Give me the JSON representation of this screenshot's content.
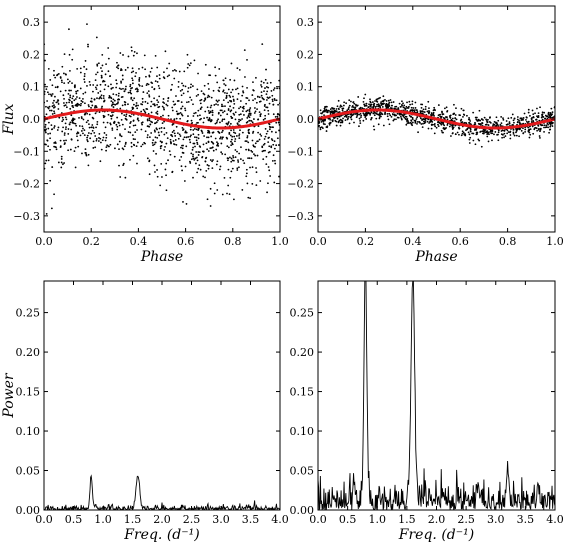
{
  "chart_data": [
    {
      "type": "scatter",
      "panel": "top-left",
      "xlabel": "Phase",
      "ylabel": "Flux",
      "xlim": [
        0.0,
        1.0
      ],
      "ylim": [
        -0.35,
        0.35
      ],
      "xticks": [
        0.0,
        0.2,
        0.4,
        0.6,
        0.8,
        1.0
      ],
      "xtick_labels": [
        "0.0",
        "0.2",
        "0.4",
        "0.6",
        "0.8",
        "1.0"
      ],
      "yticks": [
        -0.3,
        -0.2,
        -0.1,
        0.0,
        0.1,
        0.2,
        0.3
      ],
      "ytick_labels": [
        "−0.3",
        "−0.2",
        "−0.1",
        "0.0",
        "0.1",
        "0.2",
        "0.3"
      ],
      "scatter_spread": 0.085,
      "scatter_count": 1500,
      "model": {
        "type": "sinusoid",
        "amplitude": 0.028,
        "phase_of_maximum": 0.25,
        "color": "#e31a1c"
      },
      "point_color": "#000000"
    },
    {
      "type": "scatter",
      "panel": "top-right",
      "xlabel": "Phase",
      "ylabel": "",
      "xlim": [
        0.0,
        1.0
      ],
      "ylim": [
        -0.35,
        0.35
      ],
      "xticks": [
        0.0,
        0.2,
        0.4,
        0.6,
        0.8,
        1.0
      ],
      "xtick_labels": [
        "0.0",
        "0.2",
        "0.4",
        "0.6",
        "0.8",
        "1.0"
      ],
      "yticks": [
        -0.3,
        -0.2,
        -0.1,
        0.0,
        0.1,
        0.2,
        0.3
      ],
      "ytick_labels": [
        "−0.3",
        "−0.2",
        "−0.1",
        "0.0",
        "0.1",
        "0.2",
        "0.3"
      ],
      "scatter_spread": 0.018,
      "scatter_count": 1300,
      "model": {
        "type": "sinusoid",
        "amplitude": 0.028,
        "phase_of_maximum": 0.25,
        "color": "#e31a1c"
      },
      "point_color": "#000000"
    },
    {
      "type": "line",
      "panel": "bottom-left",
      "xlabel": "Freq. (d⁻¹)",
      "ylabel": "Power",
      "xlim": [
        0.0,
        4.0
      ],
      "ylim": [
        0.0,
        0.29
      ],
      "xticks": [
        0.0,
        0.5,
        1.0,
        1.5,
        2.0,
        2.5,
        3.0,
        3.5,
        4.0
      ],
      "xtick_labels": [
        "0.0",
        "0.5",
        "1.0",
        "1.5",
        "2.0",
        "2.5",
        "3.0",
        "3.5",
        "4.0"
      ],
      "yticks": [
        0.0,
        0.05,
        0.1,
        0.15,
        0.2,
        0.25
      ],
      "ytick_labels": [
        "0.00",
        "0.05",
        "0.10",
        "0.15",
        "0.20",
        "0.25"
      ],
      "peaks": [
        {
          "x": 0.8,
          "y": 0.041,
          "width": 0.02
        },
        {
          "x": 1.59,
          "y": 0.042,
          "width": 0.03
        }
      ],
      "noise_level": 0.003,
      "line_color": "#000000"
    },
    {
      "type": "line",
      "panel": "bottom-right",
      "xlabel": "Freq. (d⁻¹)",
      "ylabel": "",
      "xlim": [
        0.0,
        4.0
      ],
      "ylim": [
        0.0,
        0.29
      ],
      "xticks": [
        0.0,
        0.5,
        1.0,
        1.5,
        2.0,
        2.5,
        3.0,
        3.5,
        4.0
      ],
      "xtick_labels": [
        "0.0",
        "0.5",
        "1.0",
        "1.5",
        "2.0",
        "2.5",
        "3.0",
        "3.5",
        "4.0"
      ],
      "yticks": [
        0.0,
        0.05,
        0.1,
        0.15,
        0.2,
        0.25
      ],
      "ytick_labels": [
        "0.00",
        "0.05",
        "0.10",
        "0.15",
        "0.20",
        "0.25"
      ],
      "peaks": [
        {
          "x": 0.8,
          "y": 0.288,
          "width": 0.025
        },
        {
          "x": 1.6,
          "y": 0.29,
          "width": 0.03
        },
        {
          "x": 3.2,
          "y": 0.045,
          "width": 0.02
        }
      ],
      "noise_level": 0.018,
      "line_color": "#000000"
    }
  ]
}
